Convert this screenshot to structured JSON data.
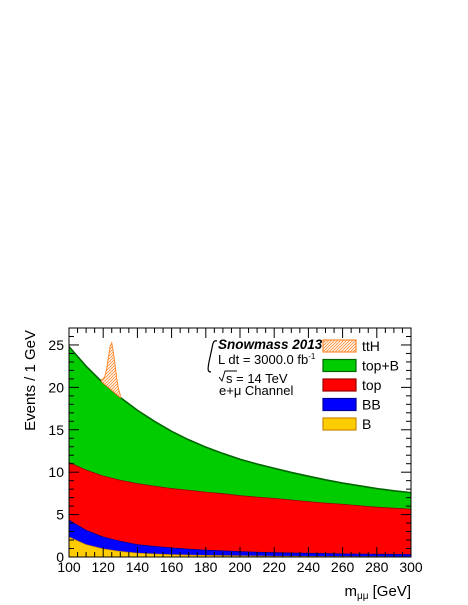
{
  "chart_data": {
    "type": "area",
    "stacked": true,
    "xlabel_main": "m",
    "xlabel_sub": "μμ",
    "xlabel_unit": " [GeV]",
    "ylabel": "Events / 1 GeV",
    "xlim": [
      100,
      300
    ],
    "ylim": [
      0,
      27
    ],
    "x_ticks": [
      100,
      120,
      140,
      160,
      180,
      200,
      220,
      240,
      260,
      280,
      300
    ],
    "y_ticks": [
      0,
      5,
      10,
      15,
      20,
      25
    ],
    "x": [
      100,
      110,
      120,
      130,
      140,
      150,
      160,
      170,
      180,
      190,
      200,
      210,
      220,
      230,
      240,
      250,
      260,
      270,
      280,
      290,
      300
    ],
    "series": [
      {
        "name": "B",
        "color": "#ffcc00",
        "values": [
          2.4,
          1.5,
          1.0,
          0.7,
          0.5,
          0.4,
          0.32,
          0.27,
          0.23,
          0.2,
          0.18,
          0.16,
          0.14,
          0.13,
          0.12,
          0.11,
          0.1,
          0.09,
          0.09,
          0.08,
          0.08
        ]
      },
      {
        "name": "BB",
        "color": "#0000ff",
        "values": [
          2.0,
          1.7,
          1.4,
          1.2,
          1.0,
          0.9,
          0.8,
          0.7,
          0.62,
          0.56,
          0.5,
          0.45,
          0.42,
          0.39,
          0.36,
          0.34,
          0.32,
          0.3,
          0.28,
          0.27,
          0.26
        ]
      },
      {
        "name": "top",
        "color": "#ff0000",
        "values": [
          6.8,
          7.1,
          7.2,
          7.2,
          7.2,
          7.1,
          7.0,
          6.95,
          6.85,
          6.75,
          6.6,
          6.5,
          6.4,
          6.25,
          6.1,
          5.95,
          5.85,
          5.7,
          5.55,
          5.45,
          5.35
        ]
      },
      {
        "name": "top+B",
        "color": "#00cc00",
        "values": [
          13.6,
          12.2,
          10.9,
          9.7,
          8.6,
          7.6,
          6.7,
          5.9,
          5.25,
          4.7,
          4.25,
          3.85,
          3.5,
          3.2,
          2.95,
          2.7,
          2.45,
          2.3,
          2.15,
          2.0,
          1.9
        ]
      }
    ],
    "signal": {
      "name": "ttH",
      "color": "#ff8c33",
      "x": [
        119,
        120,
        121,
        122,
        123,
        124,
        125,
        126,
        127,
        128,
        129,
        130
      ],
      "values": [
        0.2,
        0.5,
        1.0,
        2.0,
        3.5,
        5.0,
        5.6,
        4.6,
        3.2,
        1.8,
        0.8,
        0.3
      ]
    },
    "legend_order": [
      "ttH",
      "top+B",
      "top",
      "BB",
      "B"
    ],
    "legend_position": "top-right",
    "annotations": {
      "title": "Snowmass 2013",
      "lumi_prefix": "L dt = 3000.0 fb",
      "lumi_sup": "-1",
      "energy": "s = 14 TeV",
      "channel": "e+μ Channel"
    }
  }
}
